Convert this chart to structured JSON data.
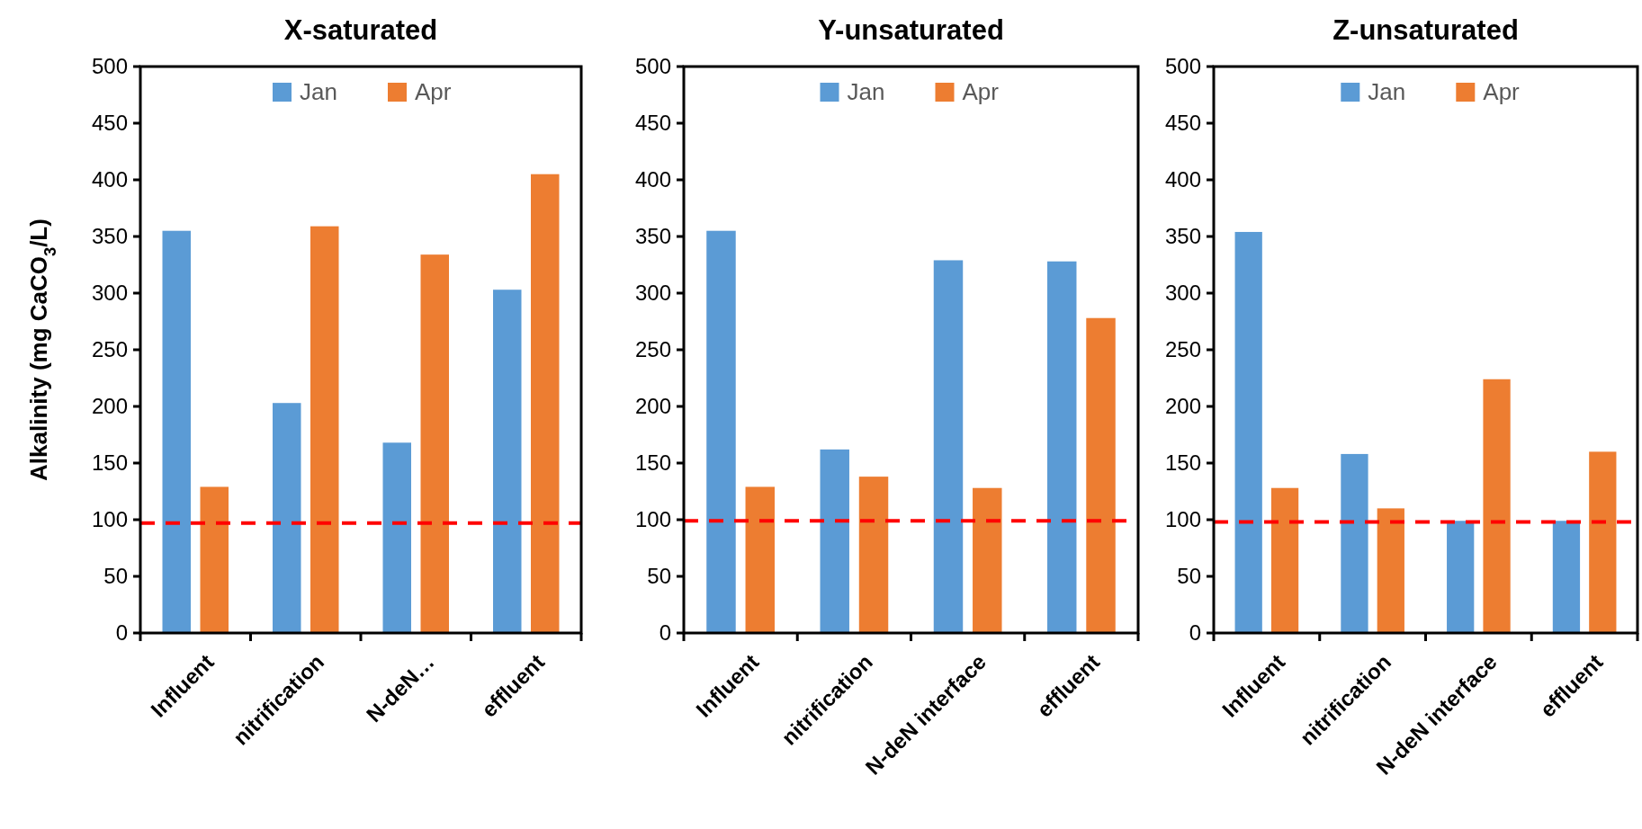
{
  "chart_data": [
    {
      "type": "bar",
      "title": "X-saturated",
      "ylabel": "Alkalinity  (mg CaCO$_{3}$/L)",
      "categories": [
        "Influent",
        "nitrification",
        "N-deN…",
        "effluent"
      ],
      "series": [
        {
          "name": "Jan",
          "color": "#5b9bd5",
          "values": [
            355,
            203,
            168,
            303
          ]
        },
        {
          "name": "Apr",
          "color": "#ed7d31",
          "values": [
            129,
            359,
            334,
            405
          ]
        }
      ],
      "ylim": [
        0,
        500
      ],
      "yticks": [
        0,
        50,
        100,
        150,
        200,
        250,
        300,
        350,
        400,
        450,
        500
      ],
      "legend": "top",
      "ref_lines": [
        {
          "axis": "y",
          "value": 97,
          "color": "#ff0000",
          "line_style": "dashed"
        }
      ]
    },
    {
      "type": "bar",
      "title": "Y-unsaturated",
      "categories": [
        "Influent",
        "nitrification",
        "N-deN interface",
        "effluent"
      ],
      "series": [
        {
          "name": "Jan",
          "color": "#5b9bd5",
          "values": [
            355,
            162,
            329,
            328
          ]
        },
        {
          "name": "Apr",
          "color": "#ed7d31",
          "values": [
            129,
            138,
            128,
            278
          ]
        }
      ],
      "ylim": [
        0,
        500
      ],
      "yticks": [
        0,
        50,
        100,
        150,
        200,
        250,
        300,
        350,
        400,
        450,
        500
      ],
      "legend": "top",
      "ref_lines": [
        {
          "axis": "y",
          "value": 99,
          "color": "#ff0000",
          "line_style": "dashed"
        }
      ]
    },
    {
      "type": "bar",
      "title": "Z-unsaturated",
      "categories": [
        "Influent",
        "nitrification",
        "N-deN interface",
        "effluent"
      ],
      "series": [
        {
          "name": "Jan",
          "color": "#5b9bd5",
          "values": [
            354,
            158,
            99,
            99
          ]
        },
        {
          "name": "Apr",
          "color": "#ed7d31",
          "values": [
            128,
            110,
            224,
            160
          ]
        }
      ],
      "ylim": [
        0,
        500
      ],
      "yticks": [
        0,
        50,
        100,
        150,
        200,
        250,
        300,
        350,
        400,
        450,
        500
      ],
      "legend": "top",
      "ref_lines": [
        {
          "axis": "y",
          "value": 98,
          "color": "#ff0000",
          "line_style": "dashed"
        }
      ]
    }
  ]
}
